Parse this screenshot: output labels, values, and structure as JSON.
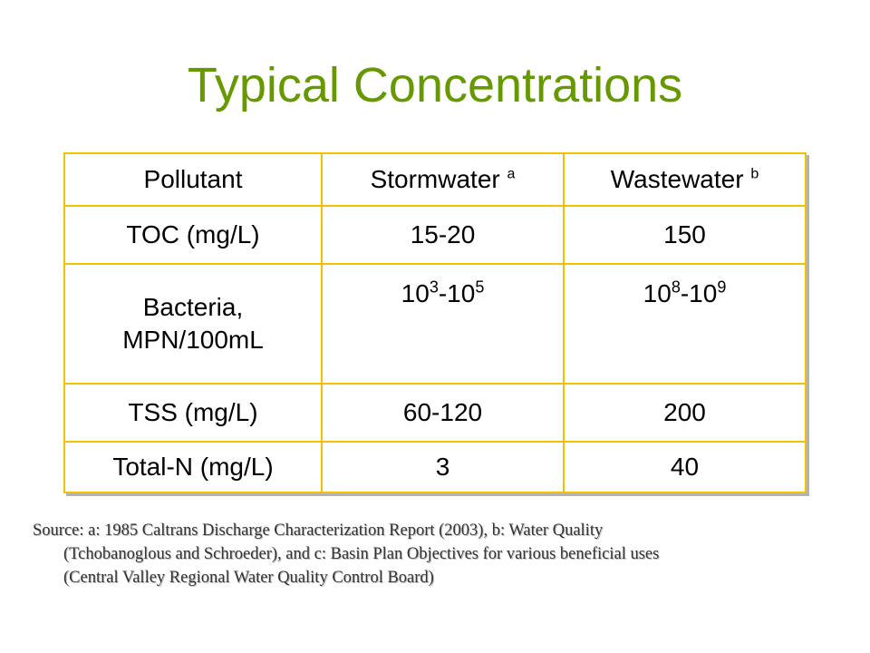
{
  "title": "Typical Concentrations",
  "table": {
    "headers": {
      "pollutant": "Pollutant",
      "stormwater": "Stormwater",
      "stormwater_sup": "a",
      "wastewater": "Wastewater",
      "wastewater_sup": "b"
    },
    "rows": {
      "toc": {
        "label": "TOC (mg/L)",
        "stormwater": "15-20",
        "wastewater": "150"
      },
      "bacteria": {
        "label_line1": "Bacteria,",
        "label_line2": "MPN/100mL",
        "storm_base1": "10",
        "storm_exp1": "3",
        "storm_sep": "-10",
        "storm_exp2": "5",
        "waste_base1": "10",
        "waste_exp1": "8",
        "waste_sep": "-10",
        "waste_exp2": "9"
      },
      "tss": {
        "label": "TSS (mg/L)",
        "stormwater": "60-120",
        "wastewater": "200"
      },
      "total_n": {
        "label": "Total-N (mg/L)",
        "stormwater": "3",
        "wastewater": "40"
      }
    }
  },
  "source": {
    "line1": "Source: a: 1985 Caltrans Discharge Characterization Report (2003), b: Water Quality",
    "line2": "(Tchobanoglous and Schroeder), and c: Basin Plan Objectives for various beneficial uses",
    "line3": "(Central Valley Regional Water Quality Control Board)"
  },
  "colors": {
    "title": "#669900",
    "table_border": "#f2c200"
  }
}
